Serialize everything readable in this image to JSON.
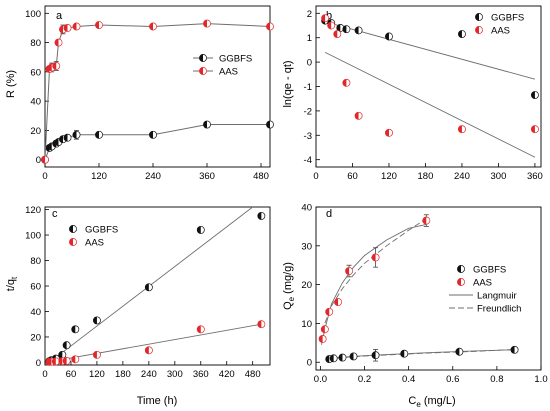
{
  "colors": {
    "ggbfs": "#111111",
    "aas": "#e0282b",
    "line": "#6e6e6e"
  },
  "chart_data": [
    {
      "id": "a",
      "type": "line",
      "panel_label": "a",
      "xlabel": "",
      "ylabel": "R (%)",
      "xlim": [
        0,
        500
      ],
      "ylim": [
        -5,
        105
      ],
      "xticks": [
        0,
        120,
        240,
        360,
        480
      ],
      "yticks": [
        0,
        20,
        40,
        60,
        80,
        100
      ],
      "legend_position": "middle-right",
      "series": [
        {
          "name": "GGBFS",
          "marker": "half-black",
          "connect": true,
          "x": [
            0,
            10,
            15,
            25,
            30,
            40,
            50,
            70,
            120,
            240,
            360,
            500
          ],
          "y": [
            0,
            8,
            9,
            11,
            12,
            14,
            15,
            17,
            17,
            17,
            24,
            24
          ],
          "err": [
            0,
            0,
            0,
            0,
            0,
            0,
            0,
            3,
            0,
            0,
            0,
            0
          ]
        },
        {
          "name": "AAS",
          "marker": "half-red",
          "connect": true,
          "x": [
            0,
            10,
            15,
            25,
            30,
            40,
            50,
            70,
            120,
            240,
            360,
            500
          ],
          "y": [
            0,
            62,
            63,
            64,
            80,
            89,
            90,
            91,
            92,
            91,
            93,
            91
          ],
          "err": [
            0,
            0,
            3,
            3,
            0,
            3,
            0,
            0,
            0,
            0,
            0,
            0
          ]
        }
      ]
    },
    {
      "id": "b",
      "type": "scatter",
      "panel_label": "b",
      "xlabel": "",
      "ylabel": "ln(qe - qt)",
      "xlim": [
        0,
        370
      ],
      "ylim": [
        -4.3,
        2.3
      ],
      "xticks": [
        0,
        60,
        120,
        180,
        240,
        300,
        360
      ],
      "yticks": [
        -4,
        -3,
        -2,
        -1,
        0,
        1,
        2
      ],
      "legend_position": "top-right",
      "series": [
        {
          "name": "GGBFS",
          "marker": "half-black",
          "x": [
            15,
            25,
            40,
            50,
            70,
            120,
            240,
            360
          ],
          "y": [
            1.7,
            1.6,
            1.4,
            1.35,
            1.3,
            1.05,
            1.15,
            -1.35
          ],
          "fit": [
            [
              15,
              1.65
            ],
            [
              360,
              -0.7
            ]
          ]
        },
        {
          "name": "AAS",
          "marker": "half-red",
          "x": [
            15,
            25,
            35,
            50,
            70,
            120,
            240,
            360
          ],
          "y": [
            1.8,
            1.5,
            1.15,
            -0.85,
            -2.2,
            -2.9,
            -2.75,
            -2.75
          ],
          "fit": [
            [
              15,
              0.4
            ],
            [
              360,
              -3.9
            ]
          ]
        }
      ]
    },
    {
      "id": "c",
      "type": "scatter",
      "panel_label": "c",
      "xlabel": "Time (h)",
      "ylabel": "t/qt",
      "xlim": [
        0,
        520
      ],
      "ylim": [
        -2,
        122
      ],
      "xticks": [
        0,
        60,
        120,
        180,
        240,
        300,
        360,
        420,
        480
      ],
      "yticks": [
        0,
        20,
        40,
        60,
        80,
        100,
        120
      ],
      "legend_position": "top-left",
      "series": [
        {
          "name": "GGBFS",
          "marker": "half-black",
          "x": [
            10,
            15,
            25,
            40,
            50,
            70,
            120,
            240,
            360,
            500
          ],
          "y": [
            1,
            1.8,
            3,
            6,
            13.5,
            26,
            33,
            59,
            104,
            115
          ],
          "fit": [
            [
              10,
              0
            ],
            [
              480,
              122
            ]
          ]
        },
        {
          "name": "AAS",
          "marker": "half-red",
          "x": [
            10,
            15,
            25,
            40,
            50,
            70,
            120,
            240,
            360,
            500
          ],
          "y": [
            0.5,
            0.6,
            0.8,
            1,
            1.2,
            2.5,
            6,
            9.5,
            26,
            30
          ],
          "fit": [
            [
              10,
              0.5
            ],
            [
              500,
              30
            ]
          ]
        }
      ]
    },
    {
      "id": "d",
      "type": "scatter",
      "panel_label": "d",
      "xlabel": "Ce (mg/L)",
      "ylabel": "Qe (mg/g)",
      "xlim": [
        -0.02,
        1.0
      ],
      "ylim": [
        -2,
        40
      ],
      "xticks": [
        0.0,
        0.2,
        0.4,
        0.6,
        0.8,
        1.0
      ],
      "xtick_labels": [
        "0.0",
        "0.2",
        "0.4",
        "0.6",
        "0.8",
        "1.0"
      ],
      "yticks": [
        0,
        10,
        20,
        30,
        40
      ],
      "legend_position": "center-right",
      "legend_lines": [
        "Langmuir",
        "Freundlich"
      ],
      "series": [
        {
          "name": "GGBFS",
          "marker": "half-black",
          "x": [
            0.04,
            0.06,
            0.1,
            0.15,
            0.25,
            0.38,
            0.63,
            0.88
          ],
          "y": [
            0.8,
            1.0,
            1.2,
            1.5,
            1.8,
            2.2,
            2.7,
            3.2
          ],
          "err": [
            0,
            0,
            0,
            0,
            1.5,
            0,
            0,
            0
          ]
        },
        {
          "name": "AAS",
          "marker": "half-red",
          "x": [
            0.01,
            0.02,
            0.04,
            0.08,
            0.13,
            0.25,
            0.48
          ],
          "y": [
            6,
            8.5,
            13,
            15.5,
            23.5,
            27,
            36.5
          ],
          "err": [
            0,
            0,
            0,
            0,
            1.5,
            2.5,
            1.5
          ]
        }
      ],
      "langmuir": [
        {
          "x": [
            0.03,
            0.1,
            0.2,
            0.35,
            0.5,
            0.7,
            0.88
          ],
          "y": [
            0.9,
            1.3,
            1.7,
            2.1,
            2.5,
            2.9,
            3.2
          ]
        },
        {
          "x": [
            0.005,
            0.02,
            0.05,
            0.1,
            0.15,
            0.2,
            0.3,
            0.4,
            0.48
          ],
          "y": [
            4.5,
            8.5,
            15,
            20.5,
            24.5,
            27.5,
            31.5,
            34.5,
            35.5
          ]
        }
      ],
      "freundlich": [
        {
          "x": [
            0.03,
            0.1,
            0.2,
            0.35,
            0.5,
            0.7,
            0.88
          ],
          "y": [
            0.8,
            1.2,
            1.6,
            2.0,
            2.4,
            2.8,
            3.3
          ]
        },
        {
          "x": [
            0.005,
            0.02,
            0.05,
            0.1,
            0.15,
            0.2,
            0.3,
            0.4,
            0.48
          ],
          "y": [
            5.5,
            10,
            14.5,
            19,
            22.5,
            25.5,
            30,
            34,
            37
          ]
        }
      ]
    }
  ]
}
